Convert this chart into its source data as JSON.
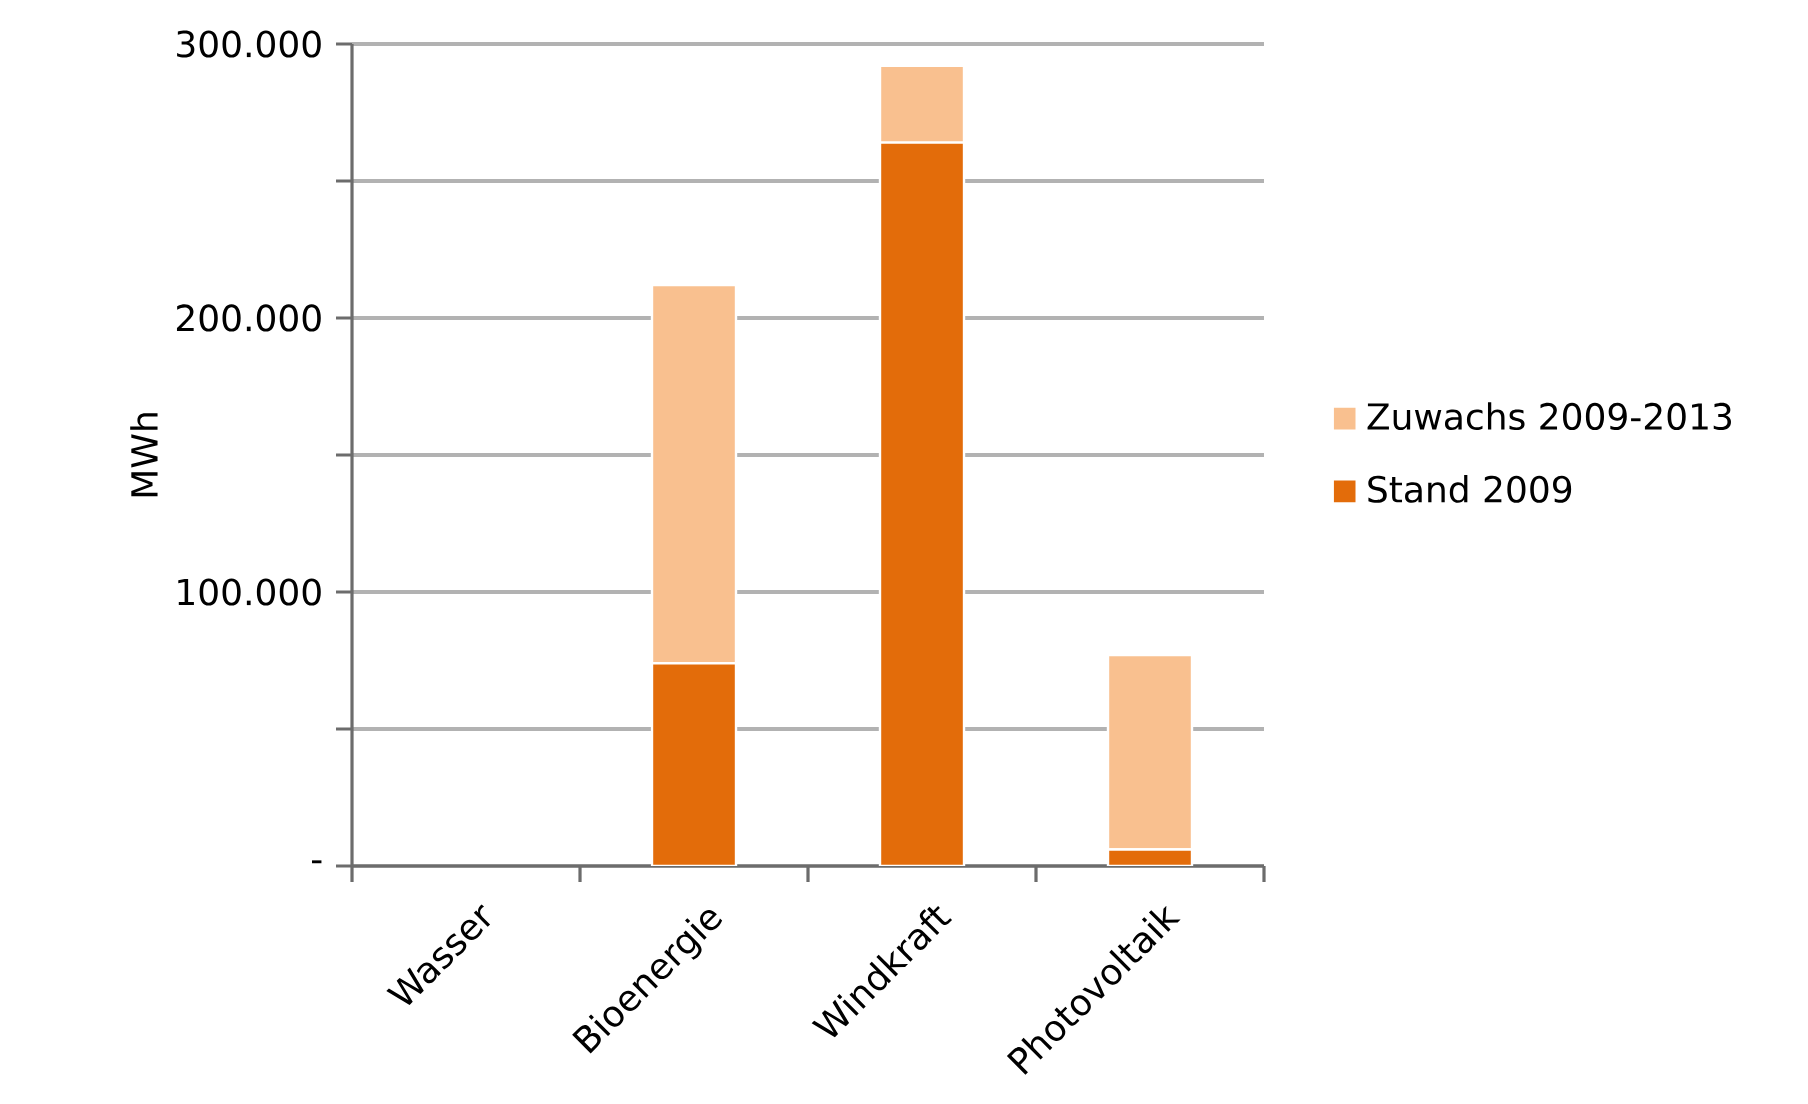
{
  "chart_data": {
    "type": "bar",
    "stacked": true,
    "ylabel": "MWh",
    "categories": [
      "Wasser",
      "Bioenergie",
      "Windkraft",
      "Photovoltaik"
    ],
    "series": [
      {
        "name": "Stand 2009",
        "color": "#e36c0a",
        "values": [
          null,
          74000,
          264000,
          6000
        ]
      },
      {
        "name": "Zuwachs 2009-2013",
        "color": "#f9c08f",
        "values": [
          null,
          138000,
          28000,
          71000
        ]
      }
    ],
    "ylim": [
      0,
      300000
    ],
    "yticks": [
      {
        "value": 0,
        "label": "-"
      },
      {
        "value": 50000,
        "label": null
      },
      {
        "value": 100000,
        "label": "100.000"
      },
      {
        "value": 150000,
        "label": null
      },
      {
        "value": 200000,
        "label": "200.000"
      },
      {
        "value": 250000,
        "label": null
      },
      {
        "value": 300000,
        "label": "300.000"
      }
    ],
    "grid": "y",
    "legend": "right"
  }
}
